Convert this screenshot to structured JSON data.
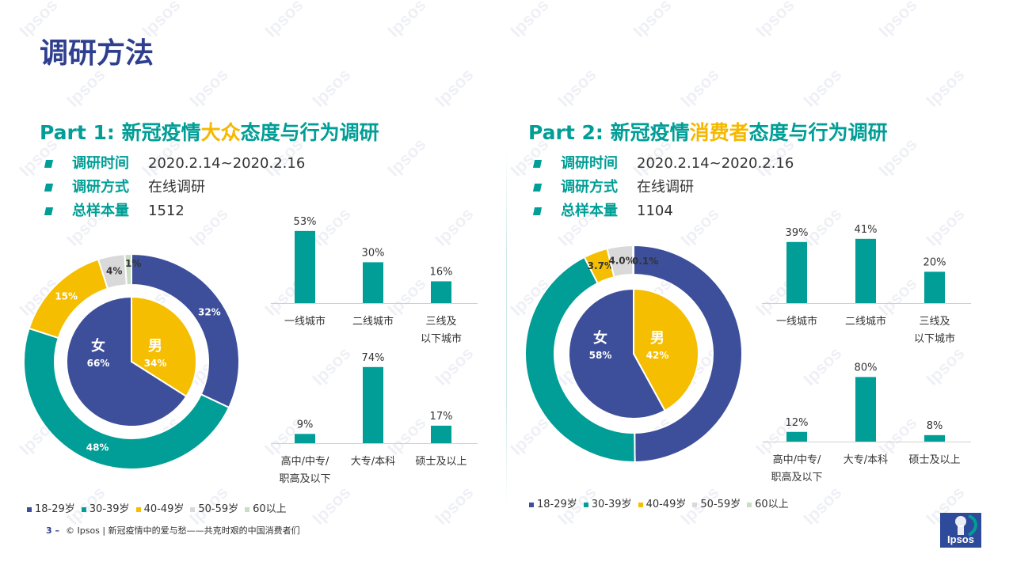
{
  "page_title": "调研方法",
  "parts": [
    {
      "title_pre": "Part 1: 新冠疫情",
      "title_hl": "大众",
      "title_post": "态度与行为调研",
      "info": [
        {
          "label": "调研时间",
          "value": "2020.2.14~2020.2.16"
        },
        {
          "label": "调研方式",
          "value": "在线调研"
        },
        {
          "label": "总样本量",
          "value": "1512"
        }
      ]
    },
    {
      "title_pre": "Part 2: 新冠疫情",
      "title_hl": "消费者",
      "title_post": "态度与行为调研",
      "info": [
        {
          "label": "调研时间",
          "value": "2020.2.14~2020.2.16"
        },
        {
          "label": "调研方式",
          "value": "在线调研"
        },
        {
          "label": "总样本量",
          "value": "1104"
        }
      ]
    }
  ],
  "colors": {
    "navy": "#3D4F9A",
    "teal": "#009E96",
    "yellow": "#F5BE00",
    "gray": "#D9D9D9",
    "green": "#C9DEC2",
    "brand": "#2E3F8F"
  },
  "chart_data": [
    {
      "type": "pie",
      "title": "Part 1 gender (inner ring)",
      "slices": [
        {
          "label": "男",
          "value": 34,
          "display": "34%",
          "color": "#F5BE00"
        },
        {
          "label": "女",
          "value": 66,
          "display": "66%",
          "color": "#3D4F9A"
        }
      ]
    },
    {
      "type": "pie",
      "title": "Part 1 age (outer ring)",
      "slices": [
        {
          "label": "18-29岁",
          "value": 32,
          "display": "32%",
          "color": "#3D4F9A"
        },
        {
          "label": "30-39岁",
          "value": 48,
          "display": "48%",
          "color": "#009E96"
        },
        {
          "label": "40-49岁",
          "value": 15,
          "display": "15%",
          "color": "#F5BE00"
        },
        {
          "label": "50-59岁",
          "value": 4,
          "display": "4%",
          "color": "#D9D9D9"
        },
        {
          "label": "60以上",
          "value": 1,
          "display": "1%",
          "color": "#C9DEC2"
        }
      ]
    },
    {
      "type": "bar",
      "title": "Part 1 city tier",
      "categories": [
        "一线城市",
        "二线城市",
        "三线及\n以下城市"
      ],
      "values": [
        53,
        30,
        16
      ],
      "labels": [
        "53%",
        "30%",
        "16%"
      ]
    },
    {
      "type": "bar",
      "title": "Part 1 education",
      "categories": [
        "高中/中专/\n职高及以下",
        "大专/本科",
        "硕士及以上"
      ],
      "values": [
        9,
        74,
        17
      ],
      "labels": [
        "9%",
        "74%",
        "17%"
      ]
    },
    {
      "type": "pie",
      "title": "Part 2 gender (inner ring)",
      "slices": [
        {
          "label": "男",
          "value": 42,
          "display": "42%",
          "color": "#F5BE00"
        },
        {
          "label": "女",
          "value": 58,
          "display": "58%",
          "color": "#3D4F9A"
        }
      ]
    },
    {
      "type": "pie",
      "title": "Part 2 age (outer ring)",
      "slices": [
        {
          "label": "18-29岁",
          "value": 51.8,
          "display": "51.8%",
          "color": "#3D4F9A"
        },
        {
          "label": "30-39岁",
          "value": 44.4,
          "display": "44.4%",
          "color": "#009E96"
        },
        {
          "label": "40-49岁",
          "value": 3.7,
          "display": "3.7%",
          "color": "#F5BE00"
        },
        {
          "label": "50-59岁",
          "value": 4.0,
          "display": "4.0%",
          "color": "#D9D9D9"
        },
        {
          "label": "60以上",
          "value": 0.1,
          "display": "0.1%",
          "color": "#C9DEC2"
        }
      ]
    },
    {
      "type": "bar",
      "title": "Part 2 city tier",
      "categories": [
        "一线城市",
        "二线城市",
        "三线及\n以下城市"
      ],
      "values": [
        39,
        41,
        20
      ],
      "labels": [
        "39%",
        "41%",
        "20%"
      ]
    },
    {
      "type": "bar",
      "title": "Part 2 education",
      "categories": [
        "高中/中专/\n职高及以下",
        "大专/本科",
        "硕士及以上"
      ],
      "values": [
        12,
        80,
        8
      ],
      "labels": [
        "12%",
        "80%",
        "8%"
      ]
    }
  ],
  "legend": [
    {
      "label": "18-29岁",
      "color": "#3D4F9A"
    },
    {
      "label": "30-39岁",
      "color": "#009E96"
    },
    {
      "label": "40-49岁",
      "color": "#F5BE00"
    },
    {
      "label": "50-59岁",
      "color": "#D9D9D9"
    },
    {
      "label": "60以上",
      "color": "#C9DEC2"
    }
  ],
  "footer": {
    "page_number": "3 –",
    "text": "© Ipsos | 新冠疫情中的爱与愁——共克时艰的中国消费者们"
  },
  "logo_text": "Ipsos",
  "watermark": "Ipsos"
}
